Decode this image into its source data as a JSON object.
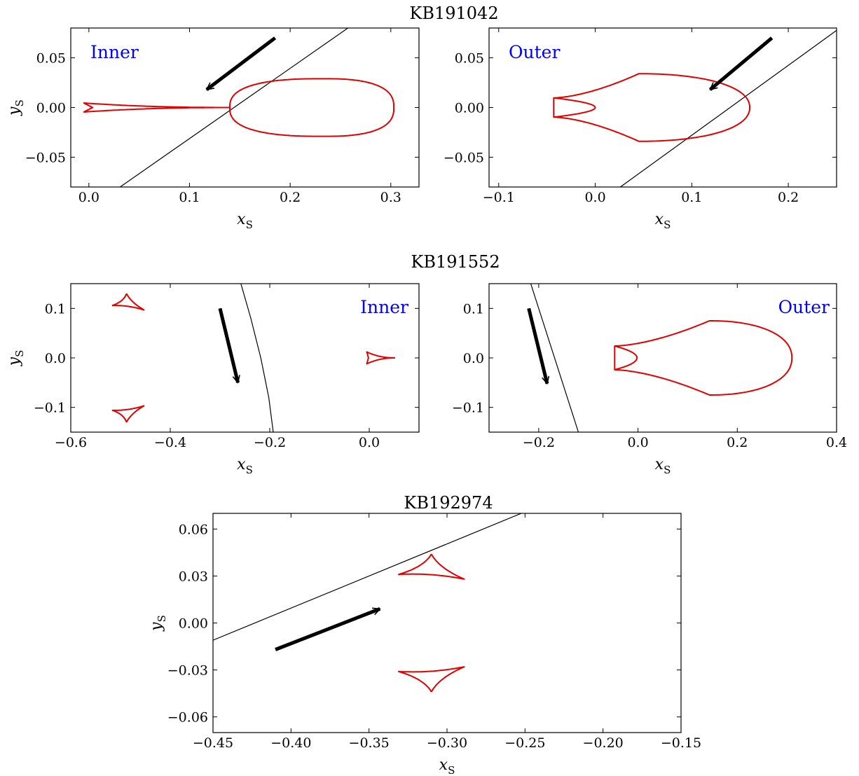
{
  "figure": {
    "groups": [
      {
        "title": "KB191042"
      },
      {
        "title": "KB191552"
      },
      {
        "title": "KB192974"
      }
    ]
  },
  "colors": {
    "caustic": "#e00000",
    "trajectory": "#000000",
    "arrow": "#000000",
    "label": "#0000ff"
  },
  "chart_data": [
    {
      "type": "line",
      "event": "KB191042",
      "panel_label": "Inner",
      "xlabel": "x",
      "xlabel_sub": "S",
      "ylabel": "y",
      "ylabel_sub": "S",
      "xlim": [
        -0.018,
        0.328
      ],
      "ylim": [
        -0.08,
        0.08
      ],
      "xticks": [
        0.0,
        0.1,
        0.2,
        0.3
      ],
      "xtick_labels": [
        "0.0",
        "0.1",
        "0.2",
        "0.3"
      ],
      "yticks": [
        -0.05,
        0.0,
        0.05
      ],
      "ytick_labels": [
        "−0.05",
        "0.00",
        "0.05"
      ],
      "label_position": "top-left",
      "caustics": [
        {
          "kind": "astroid",
          "center": [
            0.233,
            0.0
          ],
          "left": 0.14,
          "right": 0.303,
          "half_height": 0.029,
          "exponent": 2.6
        },
        {
          "kind": "trident",
          "tip": [
            0.14,
            0.0
          ],
          "left": -0.005,
          "spread": 0.0045
        }
      ],
      "trajectory": {
        "points": [
          [
            0.031,
            -0.08
          ],
          [
            0.2574,
            0.08
          ]
        ]
      },
      "arrow": {
        "from": [
          0.185,
          0.07
        ],
        "to": [
          0.117,
          0.018
        ]
      }
    },
    {
      "type": "line",
      "event": "KB191042",
      "panel_label": "Outer",
      "xlabel": "x",
      "xlabel_sub": "S",
      "ylabel": "",
      "ylabel_sub": "",
      "xlim": [
        -0.11,
        0.25
      ],
      "ylim": [
        -0.08,
        0.08
      ],
      "xticks": [
        -0.1,
        0.0,
        0.1,
        0.2
      ],
      "xtick_labels": [
        "−0.1",
        "0.0",
        "0.1",
        "0.2"
      ],
      "yticks": [
        -0.05,
        0.0,
        0.05
      ],
      "ytick_labels": [
        "−0.05",
        "0.00",
        "0.05"
      ],
      "label_position": "top-left",
      "caustics": [
        {
          "kind": "astroid",
          "center": [
            0.045,
            0.0
          ],
          "left": -0.043,
          "right": 0.16,
          "half_height": 0.034,
          "exponent": 2.2,
          "left_cusp_split": 0.0097,
          "left_inner": 0.0
        }
      ],
      "trajectory": {
        "points": [
          [
            0.026,
            -0.08
          ],
          [
            0.25,
            0.0776
          ]
        ]
      },
      "arrow": {
        "from": [
          0.183,
          0.07
        ],
        "to": [
          0.119,
          0.018
        ]
      }
    },
    {
      "type": "line",
      "event": "KB191552",
      "panel_label": "Inner",
      "xlabel": "x",
      "xlabel_sub": "S",
      "ylabel": "y",
      "ylabel_sub": "S",
      "xlim": [
        -0.6,
        0.1
      ],
      "ylim": [
        -0.15,
        0.15
      ],
      "xticks": [
        -0.6,
        -0.4,
        -0.2,
        0.0
      ],
      "xtick_labels": [
        "−0.6",
        "−0.4",
        "−0.2",
        "0.0"
      ],
      "yticks": [
        -0.1,
        0.0,
        0.1
      ],
      "ytick_labels": [
        "−0.1",
        "0.0",
        "0.1"
      ],
      "label_position": "top-right",
      "caustics": [
        {
          "kind": "triangle",
          "vertices": [
            [
              -0.488,
              0.13
            ],
            [
              -0.516,
              0.106
            ],
            [
              -0.453,
              0.097
            ]
          ]
        },
        {
          "kind": "triangle",
          "vertices": [
            [
              -0.488,
              -0.13
            ],
            [
              -0.516,
              -0.106
            ],
            [
              -0.453,
              -0.097
            ]
          ]
        },
        {
          "kind": "trident",
          "tip": [
            0.052,
            0.0
          ],
          "left": -0.005,
          "spread": 0.012
        }
      ],
      "trajectory": {
        "points": [
          [
            -0.258,
            0.15
          ],
          [
            -0.238,
            0.08
          ],
          [
            -0.218,
            0.0
          ],
          [
            -0.202,
            -0.08
          ],
          [
            -0.193,
            -0.15
          ]
        ]
      },
      "arrow": {
        "from": [
          -0.3,
          0.1
        ],
        "to": [
          -0.264,
          -0.05
        ]
      }
    },
    {
      "type": "line",
      "event": "KB191552",
      "panel_label": "Outer",
      "xlabel": "x",
      "xlabel_sub": "S",
      "ylabel": "",
      "ylabel_sub": "",
      "xlim": [
        -0.3,
        0.4
      ],
      "ylim": [
        -0.15,
        0.15
      ],
      "xticks": [
        -0.2,
        0.0,
        0.2,
        0.4
      ],
      "xtick_labels": [
        "−0.2",
        "0.0",
        "0.2",
        "0.4"
      ],
      "yticks": [
        -0.1,
        0.0,
        0.1
      ],
      "ytick_labels": [
        "−0.1",
        "0.0",
        "0.1"
      ],
      "label_position": "top-right",
      "caustics": [
        {
          "kind": "astroid",
          "center": [
            0.144,
            0.0
          ],
          "left": -0.047,
          "right": 0.31,
          "half_height": 0.075,
          "exponent": 2.2,
          "left_cusp_split": 0.024,
          "left_inner": -0.002
        }
      ],
      "trajectory": {
        "points": [
          [
            -0.216,
            0.15
          ],
          [
            -0.12,
            -0.15
          ]
        ]
      },
      "arrow": {
        "from": [
          -0.22,
          0.1
        ],
        "to": [
          -0.183,
          -0.052
        ]
      }
    },
    {
      "type": "line",
      "event": "KB192974",
      "panel_label": "",
      "xlabel": "x",
      "xlabel_sub": "S",
      "ylabel": "y",
      "ylabel_sub": "S",
      "xlim": [
        -0.45,
        -0.15
      ],
      "ylim": [
        -0.07,
        0.07
      ],
      "xticks": [
        -0.45,
        -0.4,
        -0.35,
        -0.3,
        -0.25,
        -0.2,
        -0.15
      ],
      "xtick_labels": [
        "−0.45",
        "−0.40",
        "−0.35",
        "−0.30",
        "−0.25",
        "−0.20",
        "−0.15"
      ],
      "yticks": [
        -0.06,
        -0.03,
        0.0,
        0.03,
        0.06
      ],
      "ytick_labels": [
        "−0.06",
        "−0.03",
        "0.00",
        "0.03",
        "0.06"
      ],
      "label_position": "",
      "caustics": [
        {
          "kind": "triangle",
          "vertices": [
            [
              -0.31,
              0.044
            ],
            [
              -0.331,
              0.031
            ],
            [
              -0.289,
              0.028
            ]
          ]
        },
        {
          "kind": "triangle",
          "vertices": [
            [
              -0.31,
              -0.044
            ],
            [
              -0.331,
              -0.031
            ],
            [
              -0.289,
              -0.028
            ]
          ]
        }
      ],
      "trajectory": {
        "points": [
          [
            -0.45,
            -0.011
          ],
          [
            -0.2524,
            0.07
          ]
        ]
      },
      "arrow": {
        "from": [
          -0.41,
          -0.017
        ],
        "to": [
          -0.343,
          0.009
        ]
      }
    }
  ]
}
